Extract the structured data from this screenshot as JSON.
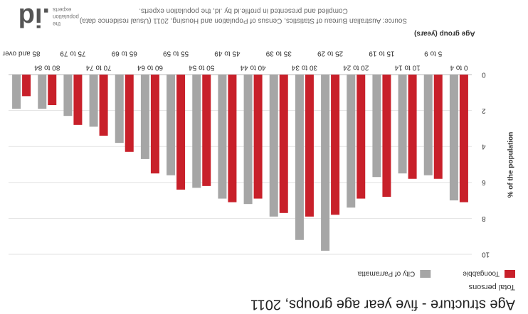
{
  "chart_data": {
    "type": "bar",
    "title": "Age structure - five year age groups, 2011",
    "subtitle": "Total persons",
    "categories": [
      "0 to 4",
      "5 to 9",
      "10 to 14",
      "15 to 19",
      "20 to 24",
      "25 to 29",
      "30 to 34",
      "35 to 39",
      "40 to 44",
      "45 to 49",
      "50 to 54",
      "55 to 59",
      "60 to 64",
      "65 to 69",
      "70 to 74",
      "75 to 79",
      "80 to 84",
      "85 and over"
    ],
    "series": [
      {
        "name": "Toongabbie",
        "color": "#c8202a",
        "values": [
          7.1,
          5.8,
          5.8,
          6.8,
          6.9,
          7.8,
          7.9,
          7.7,
          6.9,
          7.1,
          6.2,
          6.4,
          5.5,
          4.3,
          3.4,
          2.8,
          1.7,
          1.2
        ]
      },
      {
        "name": "City of Parramatta",
        "color": "#a6a6a6",
        "values": [
          7.0,
          5.6,
          5.5,
          5.7,
          7.4,
          9.8,
          9.2,
          7.9,
          7.2,
          6.9,
          6.3,
          5.6,
          4.7,
          3.8,
          2.9,
          2.3,
          1.9,
          1.9
        ]
      }
    ],
    "xlabel": "Age group (years)",
    "ylabel": "% of the population",
    "ylim": [
      0,
      10
    ],
    "yticks": [
      0,
      2,
      4,
      6,
      8,
      10
    ],
    "grid": true
  },
  "source": {
    "line1": "Source: Australian Bureau of Statistics, Census of Population and Housing, 2011 (Usual residence data)",
    "line2": "Compiled and presented in profile.id by .id, the population experts."
  },
  "logo": {
    "mark": ".id",
    "line1": "the",
    "line2": "population",
    "line3": "experts"
  }
}
